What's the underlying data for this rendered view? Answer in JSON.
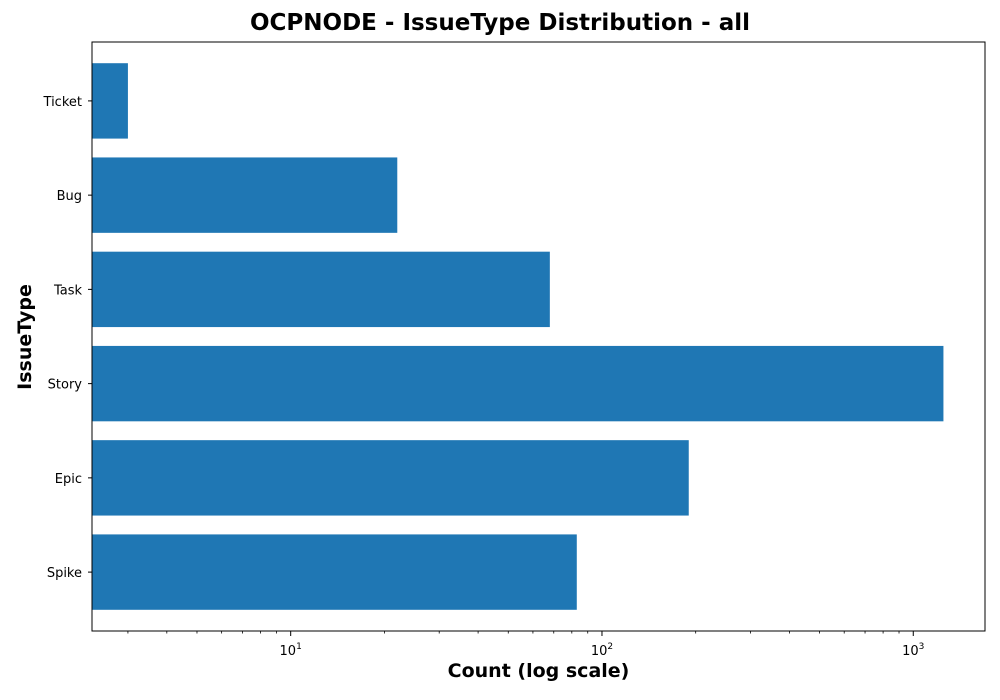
{
  "chart_data": {
    "type": "bar",
    "orientation": "horizontal",
    "title": "OCPNODE - IssueType Distribution - all",
    "xlabel": "Count (log scale)",
    "ylabel": "IssueType",
    "x_scale": "log",
    "xlim": [
      2.3,
      1700
    ],
    "categories": [
      "Ticket",
      "Bug",
      "Task",
      "Story",
      "Epic",
      "Spike"
    ],
    "values": [
      3,
      22,
      68,
      1250,
      190,
      83
    ],
    "bar_color": "#1f77b4",
    "x_ticks": [
      {
        "value": 10,
        "base": "10",
        "exp": "1"
      },
      {
        "value": 100,
        "base": "10",
        "exp": "2"
      },
      {
        "value": 1000,
        "base": "10",
        "exp": "3"
      }
    ],
    "grid": false,
    "legend": "none"
  }
}
